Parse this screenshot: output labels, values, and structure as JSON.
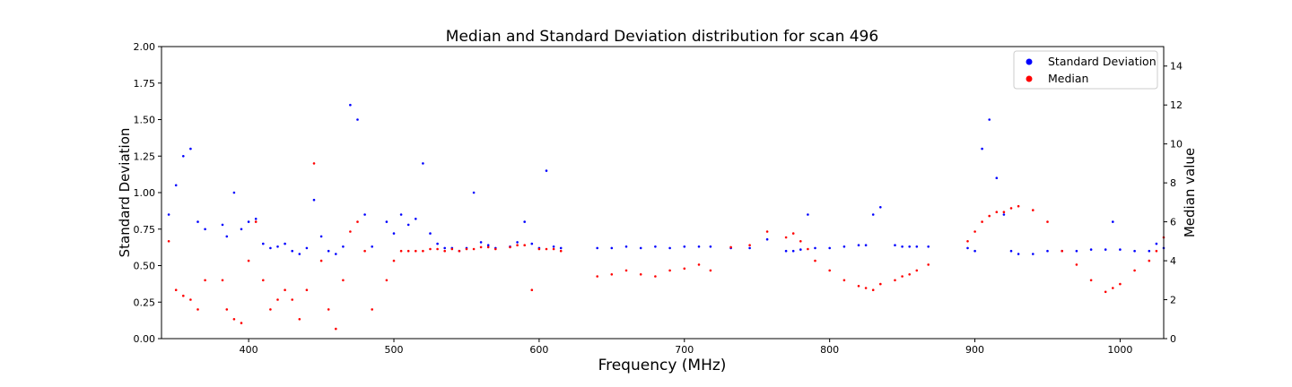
{
  "chart_data": {
    "type": "scatter",
    "title": "Median and Standard Deviation distribution for scan 496",
    "xlabel": "Frequency (MHz)",
    "ylabel_left": "Standard Deviation",
    "ylabel_right": "Median value",
    "xlim": [
      340,
      1030
    ],
    "ylim_left": [
      0,
      2.0
    ],
    "ylim_right": [
      0,
      15
    ],
    "x_ticks": [
      "400",
      "500",
      "600",
      "700",
      "800",
      "900",
      "1000"
    ],
    "y_left_ticks": [
      "0.00",
      "0.25",
      "0.50",
      "0.75",
      "1.00",
      "1.25",
      "1.50",
      "1.75",
      "2.00"
    ],
    "y_right_ticks": [
      "0",
      "2",
      "4",
      "6",
      "8",
      "10",
      "12",
      "14"
    ],
    "grid": false,
    "legend": {
      "placement": "top-right",
      "entries": [
        "Standard Deviation",
        "Median"
      ]
    },
    "series": [
      {
        "name": "Standard Deviation",
        "axis": "left",
        "color": "#0000ff",
        "x": [
          345,
          350,
          355,
          360,
          365,
          370,
          382,
          385,
          390,
          395,
          400,
          405,
          410,
          415,
          420,
          425,
          430,
          435,
          440,
          445,
          450,
          455,
          460,
          465,
          470,
          475,
          480,
          485,
          495,
          500,
          505,
          510,
          515,
          520,
          525,
          530,
          535,
          540,
          545,
          550,
          555,
          560,
          565,
          570,
          580,
          585,
          590,
          595,
          600,
          605,
          610,
          615,
          640,
          650,
          660,
          670,
          680,
          690,
          700,
          710,
          718,
          732,
          745,
          757,
          770,
          775,
          780,
          785,
          790,
          800,
          810,
          820,
          825,
          830,
          835,
          845,
          850,
          855,
          860,
          868,
          895,
          900,
          905,
          910,
          915,
          920,
          925,
          930,
          940,
          950,
          960,
          970,
          980,
          990,
          995,
          1000,
          1010,
          1020,
          1025,
          1030
        ],
        "y": [
          0.85,
          1.05,
          1.25,
          1.3,
          0.8,
          0.75,
          0.78,
          0.7,
          1.0,
          0.75,
          0.8,
          0.82,
          0.65,
          0.62,
          0.63,
          0.65,
          0.6,
          0.58,
          0.62,
          0.95,
          0.7,
          0.6,
          0.58,
          0.63,
          1.6,
          1.5,
          0.85,
          0.63,
          0.8,
          0.72,
          0.85,
          0.78,
          0.82,
          1.2,
          0.72,
          0.65,
          0.62,
          0.62,
          0.6,
          0.62,
          1.0,
          0.66,
          0.64,
          0.62,
          0.63,
          0.66,
          0.8,
          0.65,
          0.62,
          1.15,
          0.63,
          0.62,
          0.62,
          0.62,
          0.63,
          0.62,
          0.63,
          0.62,
          0.63,
          0.63,
          0.63,
          0.62,
          0.62,
          0.68,
          0.6,
          0.6,
          0.61,
          0.85,
          0.62,
          0.62,
          0.63,
          0.64,
          0.64,
          0.85,
          0.9,
          0.64,
          0.63,
          0.63,
          0.63,
          0.63,
          0.62,
          0.6,
          1.3,
          1.5,
          1.1,
          0.85,
          0.6,
          0.58,
          0.58,
          0.6,
          0.6,
          0.6,
          0.61,
          0.61,
          0.8,
          0.61,
          0.6,
          0.6,
          0.65,
          0.62
        ]
      },
      {
        "name": "Median",
        "axis": "right",
        "color": "#ff0000",
        "x": [
          345,
          350,
          355,
          360,
          365,
          370,
          382,
          385,
          390,
          395,
          400,
          405,
          410,
          415,
          420,
          425,
          430,
          435,
          440,
          445,
          450,
          455,
          460,
          465,
          470,
          475,
          480,
          485,
          495,
          500,
          505,
          510,
          515,
          520,
          525,
          530,
          535,
          540,
          545,
          550,
          555,
          560,
          565,
          570,
          580,
          585,
          590,
          595,
          600,
          605,
          610,
          615,
          640,
          650,
          660,
          670,
          680,
          690,
          700,
          710,
          718,
          732,
          745,
          757,
          770,
          775,
          780,
          785,
          790,
          800,
          810,
          820,
          825,
          830,
          835,
          845,
          850,
          855,
          860,
          868,
          895,
          900,
          905,
          910,
          915,
          920,
          925,
          930,
          940,
          950,
          960,
          970,
          980,
          990,
          995,
          1000,
          1010,
          1020,
          1025,
          1030
        ],
        "y": [
          5.0,
          2.5,
          2.2,
          2.0,
          1.5,
          3.0,
          3.0,
          1.5,
          1.0,
          0.8,
          4.0,
          6.0,
          3.0,
          1.5,
          2.0,
          2.5,
          2.0,
          1.0,
          2.5,
          9.0,
          4.0,
          1.5,
          0.5,
          3.0,
          5.5,
          6.0,
          4.5,
          1.5,
          3.0,
          4.0,
          4.5,
          4.5,
          4.5,
          4.5,
          4.6,
          4.6,
          4.5,
          4.6,
          4.5,
          4.6,
          4.6,
          4.7,
          4.7,
          4.6,
          4.7,
          4.8,
          4.8,
          2.5,
          4.6,
          4.6,
          4.6,
          4.5,
          3.2,
          3.3,
          3.5,
          3.3,
          3.2,
          3.5,
          3.6,
          3.8,
          3.5,
          4.7,
          4.8,
          5.5,
          5.2,
          5.4,
          5.0,
          4.6,
          4.0,
          3.5,
          3.0,
          2.7,
          2.6,
          2.5,
          2.8,
          3.0,
          3.2,
          3.3,
          3.5,
          3.8,
          5.0,
          5.5,
          6.0,
          6.3,
          6.5,
          6.5,
          6.7,
          6.8,
          6.6,
          6.0,
          4.5,
          3.8,
          3.0,
          2.4,
          2.6,
          2.8,
          3.5,
          4.0,
          4.5,
          5.2
        ]
      }
    ]
  }
}
